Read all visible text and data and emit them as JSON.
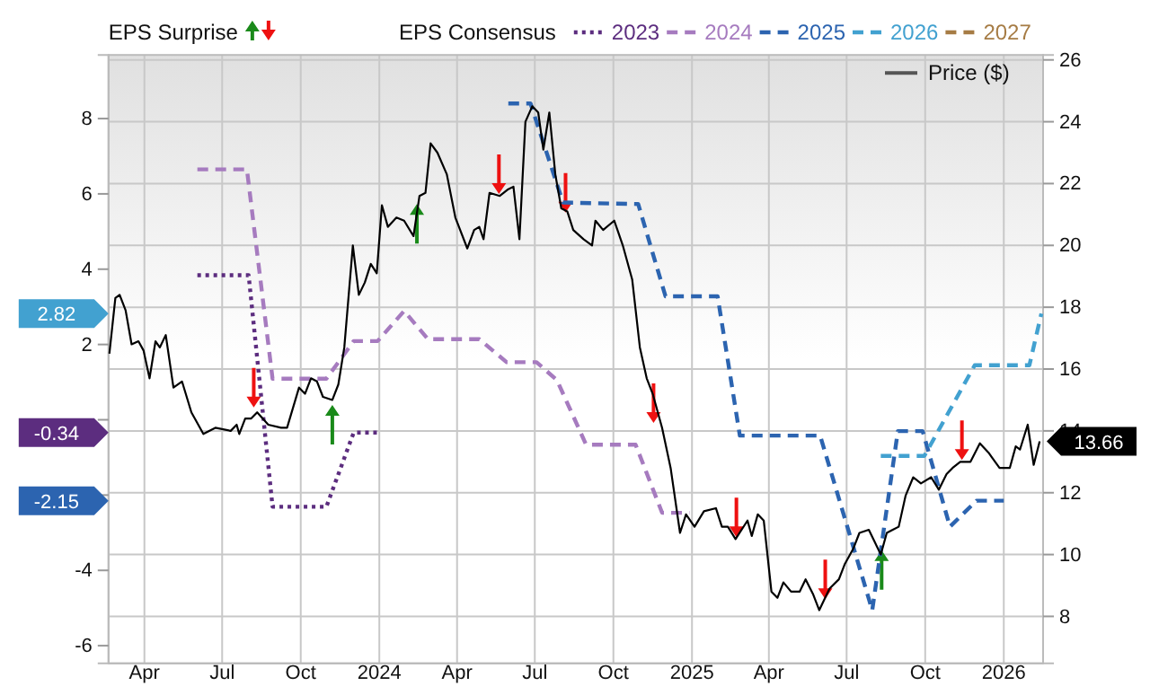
{
  "chart_data": {
    "type": "line",
    "legend_title": "EPS Consensus",
    "annotations": [
      "EPS Surprise",
      "2.82",
      "-0.34",
      "-2.15"
    ],
    "legend": "top",
    "grid": true,
    "xlim": [
      "2023-02-18",
      "2026-02-16"
    ],
    "xticks": [
      {
        "value": "2023-04-01",
        "label": "Apr"
      },
      {
        "value": "2023-07-01",
        "label": "Jul"
      },
      {
        "value": "2023-10-01",
        "label": "Oct"
      },
      {
        "value": "2024-01-01",
        "label": "2024"
      },
      {
        "value": "2024-04-01",
        "label": "Apr"
      },
      {
        "value": "2024-07-01",
        "label": "Jul"
      },
      {
        "value": "2024-10-01",
        "label": "Oct"
      },
      {
        "value": "2025-01-01",
        "label": "2025"
      },
      {
        "value": "2025-04-01",
        "label": "Apr"
      },
      {
        "value": "2025-07-01",
        "label": "Jul"
      },
      {
        "value": "2025-10-01",
        "label": "Oct"
      },
      {
        "value": "2026-01-01",
        "label": "2026"
      }
    ],
    "ylim": [
      -6.47,
      9.69
    ],
    "yticks": [
      -6,
      -4,
      {
        "value": -2,
        "label": null
      },
      {
        "value": 0,
        "label": null
      },
      2,
      4,
      6,
      8
    ],
    "y2lim": [
      6.48,
      26.16
    ],
    "y2ticks": [
      8,
      10,
      12,
      14,
      16,
      18,
      20,
      22,
      24,
      26
    ],
    "series": [
      {
        "type": "scatter",
        "color": "#1a8a1a",
        "axis": "y2",
        "x": [
          "2023-11-07",
          "2024-02-14",
          "2025-08-11"
        ],
        "values": [
          14.2,
          20.7,
          9.5
        ]
      },
      {
        "type": "scatter",
        "color": "#ee1111",
        "axis": "y2",
        "x": [
          "2023-08-07",
          "2024-05-20",
          "2024-08-06",
          "2024-11-17",
          "2025-02-22",
          "2025-06-06",
          "2025-11-13"
        ],
        "values": [
          15.4,
          22.3,
          21.7,
          14.9,
          11.2,
          9.2,
          13.7
        ]
      },
      {
        "name": "2023",
        "color": "#5c2d7f",
        "line_style": "dotted",
        "x": [
          "2023-06-02",
          "2023-08-01",
          "2023-08-29",
          "2023-10-31",
          "2023-12-02",
          "2023-12-30"
        ],
        "values": [
          3.84,
          3.84,
          -2.31,
          -2.31,
          -0.34,
          -0.34
        ]
      },
      {
        "name": "2024",
        "color": "#a67bbf",
        "line_style": "dashed",
        "x": [
          "2023-06-02",
          "2023-07-30",
          "2023-08-29",
          "2023-10-31",
          "2023-12-02",
          "2023-12-30",
          "2024-01-30",
          "2024-02-27",
          "2024-04-27",
          "2024-05-29",
          "2024-07-03",
          "2024-07-27",
          "2024-08-30",
          "2024-10-27",
          "2024-11-27",
          "2024-12-29"
        ],
        "values": [
          6.65,
          6.65,
          1.09,
          1.09,
          2.09,
          2.09,
          2.89,
          2.14,
          2.14,
          1.53,
          1.53,
          1.05,
          -0.66,
          -0.66,
          -2.47,
          -2.47
        ]
      },
      {
        "name": "2025",
        "color": "#2c64b0",
        "line_style": "dashed",
        "x": [
          "2024-05-31",
          "2024-06-26",
          "2024-08-03",
          "2024-10-30",
          "2024-12-01",
          "2025-01-31",
          "2025-02-26",
          "2025-05-31",
          "2025-07-31",
          "2025-08-30",
          "2025-09-28",
          "2025-10-30",
          "2025-11-30",
          "2026-01-01"
        ],
        "values": [
          8.4,
          8.4,
          5.77,
          5.73,
          3.28,
          3.28,
          -0.42,
          -0.42,
          -5.06,
          -0.3,
          -0.3,
          -2.84,
          -2.15,
          -2.15
        ]
      },
      {
        "name": "2026",
        "color": "#42a1d0",
        "line_style": "dashed",
        "x": [
          "2025-08-10",
          "2025-09-30",
          "2025-11-28",
          "2026-01-31",
          "2026-02-14"
        ],
        "values": [
          -0.96,
          -0.96,
          1.45,
          1.45,
          2.82
        ]
      },
      {
        "name": "2027",
        "color": "#a67c45",
        "line_style": "dashed"
      },
      {
        "name": "Price ($)",
        "color": "#000000",
        "axis": "y2",
        "line_style": "solid",
        "x": [
          "2023-02-19",
          "2023-02-26",
          "2023-03-03",
          "2023-03-10",
          "2023-03-17",
          "2023-03-25",
          "2023-03-31",
          "2023-04-07",
          "2023-04-14",
          "2023-04-19",
          "2023-04-26",
          "2023-05-05",
          "2023-05-15",
          "2023-05-26",
          "2023-06-09",
          "2023-06-23",
          "2023-07-11",
          "2023-07-18",
          "2023-07-21",
          "2023-07-28",
          "2023-08-04",
          "2023-08-11",
          "2023-08-24",
          "2023-09-08",
          "2023-09-15",
          "2023-09-29",
          "2023-10-06",
          "2023-10-13",
          "2023-10-20",
          "2023-10-27",
          "2023-11-07",
          "2023-11-14",
          "2023-11-21",
          "2023-12-01",
          "2023-12-08",
          "2023-12-15",
          "2023-12-22",
          "2023-12-29",
          "2024-01-04",
          "2024-01-11",
          "2024-01-21",
          "2024-01-30",
          "2024-02-10",
          "2024-02-17",
          "2024-02-24",
          "2024-03-01",
          "2024-03-09",
          "2024-03-20",
          "2024-03-30",
          "2024-04-13",
          "2024-04-21",
          "2024-04-27",
          "2024-05-02",
          "2024-05-09",
          "2024-05-21",
          "2024-05-30",
          "2024-06-06",
          "2024-06-13",
          "2024-06-20",
          "2024-06-28",
          "2024-07-05",
          "2024-07-11",
          "2024-07-18",
          "2024-07-25",
          "2024-08-01",
          "2024-08-08",
          "2024-08-15",
          "2024-08-27",
          "2024-09-06",
          "2024-09-10",
          "2024-09-19",
          "2024-10-02",
          "2024-10-12",
          "2024-10-23",
          "2024-11-01",
          "2024-11-09",
          "2024-11-16",
          "2024-11-27",
          "2024-12-07",
          "2024-12-18",
          "2024-12-25",
          "2025-01-04",
          "2025-01-15",
          "2025-01-29",
          "2025-02-05",
          "2025-02-12",
          "2025-02-21",
          "2025-03-07",
          "2025-03-12",
          "2025-03-19",
          "2025-03-26",
          "2025-04-04",
          "2025-04-11",
          "2025-04-18",
          "2025-04-27",
          "2025-05-07",
          "2025-05-14",
          "2025-05-23",
          "2025-05-30",
          "2025-06-11",
          "2025-06-22",
          "2025-06-29",
          "2025-07-09",
          "2025-07-16",
          "2025-07-27",
          "2025-08-03",
          "2025-08-10",
          "2025-08-17",
          "2025-08-24",
          "2025-08-31",
          "2025-09-08",
          "2025-09-17",
          "2025-09-26",
          "2025-10-08",
          "2025-10-17",
          "2025-10-26",
          "2025-11-02",
          "2025-11-11",
          "2025-11-23",
          "2025-12-04",
          "2025-12-14",
          "2025-12-27",
          "2026-01-08",
          "2026-01-15",
          "2026-01-20",
          "2026-01-29",
          "2026-02-05",
          "2026-02-12"
        ],
        "values": [
          16.5,
          18.3,
          18.4,
          17.9,
          16.8,
          16.9,
          16.6,
          15.7,
          16.9,
          16.7,
          17.1,
          15.4,
          15.6,
          14.6,
          13.9,
          14.1,
          14.0,
          14.2,
          13.9,
          14.4,
          14.4,
          14.6,
          14.2,
          14.1,
          14.1,
          15.4,
          15.2,
          15.7,
          15.6,
          15.1,
          15.0,
          15.5,
          16.7,
          20.0,
          18.4,
          18.8,
          19.4,
          19.1,
          21.3,
          20.6,
          20.9,
          20.8,
          20.3,
          21.6,
          21.7,
          23.3,
          23.0,
          22.3,
          20.9,
          19.9,
          20.5,
          20.6,
          20.2,
          21.7,
          21.6,
          21.8,
          21.9,
          20.2,
          24.0,
          24.5,
          24.3,
          23.1,
          24.3,
          22.3,
          21.2,
          21.1,
          20.5,
          20.2,
          20.0,
          20.8,
          20.5,
          20.8,
          20.0,
          18.9,
          16.7,
          15.7,
          15.2,
          14.1,
          12.8,
          10.7,
          11.3,
          10.9,
          11.4,
          11.5,
          10.9,
          10.9,
          10.5,
          11.1,
          10.6,
          11.3,
          11.1,
          8.8,
          8.6,
          9.1,
          8.8,
          8.8,
          9.2,
          8.7,
          8.2,
          8.9,
          9.2,
          9.7,
          10.2,
          10.7,
          10.8,
          10.4,
          10.0,
          10.7,
          10.8,
          10.9,
          11.9,
          12.5,
          12.3,
          12.5,
          12.1,
          12.6,
          12.8,
          13.0,
          13.0,
          13.6,
          13.3,
          12.8,
          12.8,
          13.5,
          13.4,
          14.2,
          12.9,
          13.66
        ],
        "value_labels": [
          null,
          null,
          null,
          null,
          null,
          null,
          null,
          null,
          null,
          null,
          null,
          null,
          null,
          null,
          null,
          null,
          null,
          null,
          null,
          null,
          null,
          null,
          null,
          null,
          null,
          null,
          null,
          null,
          null,
          null,
          null,
          null,
          null,
          null,
          null,
          null,
          null,
          null,
          null,
          null,
          null,
          null,
          null,
          null,
          null,
          null,
          null,
          null,
          null,
          null,
          null,
          null,
          null,
          null,
          null,
          null,
          null,
          null,
          null,
          null,
          null,
          null,
          null,
          null,
          null,
          null,
          null,
          null,
          null,
          null,
          null,
          null,
          null,
          null,
          null,
          null,
          null,
          null,
          null,
          null,
          null,
          null,
          null,
          null,
          null,
          null,
          null,
          null,
          null,
          null,
          null,
          null,
          null,
          null,
          null,
          null,
          null,
          null,
          null,
          null,
          null,
          null,
          null,
          null,
          null,
          null,
          null,
          null,
          null,
          null,
          null,
          null,
          null,
          null,
          null,
          null,
          null,
          null,
          null,
          null,
          null,
          null,
          null,
          null,
          null,
          null,
          null,
          "13.66"
        ]
      }
    ]
  }
}
